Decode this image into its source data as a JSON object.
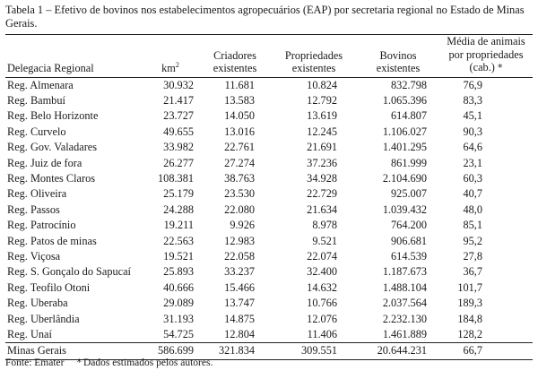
{
  "caption": "Tabela 1 – Efetivo de bovinos nos estabelecimentos agropecuários (EAP) por secretaria regional no Estado de Minas Gerais.",
  "headers": {
    "region": "Delegacia Regional",
    "area": "km",
    "area_sup": "2",
    "breeders": "Criadores existentes",
    "properties": "Propriedades existentes",
    "cattle": "Bovinos existentes",
    "average": "Média de animais por propriedades (cab.)",
    "average_marker": "*"
  },
  "rows": [
    [
      "Reg. Almenara",
      "30.932",
      "11.681",
      "10.824",
      "832.798",
      "76,9"
    ],
    [
      "Reg. Bambuí",
      "21.417",
      "13.583",
      "12.792",
      "1.065.396",
      "83,3"
    ],
    [
      "Reg. Belo Horizonte",
      "23.727",
      "14.050",
      "13.619",
      "614.807",
      "45,1"
    ],
    [
      "Reg. Curvelo",
      "49.655",
      "13.016",
      "12.245",
      "1.106.027",
      "90,3"
    ],
    [
      "Reg. Gov. Valadares",
      "33.982",
      "22.761",
      "21.691",
      "1.401.295",
      "64,6"
    ],
    [
      "Reg. Juiz de fora",
      "26.277",
      "27.274",
      "37.236",
      "861.999",
      "23,1"
    ],
    [
      "Reg. Montes Claros",
      "108.381",
      "38.763",
      "34.928",
      "2.104.690",
      "60,3"
    ],
    [
      "Reg. Oliveira",
      "25.179",
      "23.530",
      "22.729",
      "925.007",
      "40,7"
    ],
    [
      "Reg. Passos",
      "24.288",
      "22.080",
      "21.634",
      "1.039.432",
      "48,0"
    ],
    [
      "Reg. Patrocínio",
      "19.211",
      "9.926",
      "8.978",
      "764.200",
      "85,1"
    ],
    [
      "Reg. Patos de minas",
      "22.563",
      "12.983",
      "9.521",
      "906.681",
      "95,2"
    ],
    [
      "Reg. Viçosa",
      "19.521",
      "22.058",
      "22.074",
      "614.539",
      "27,8"
    ],
    [
      "Reg. S. Gonçalo do Sapucaí",
      "25.893",
      "33.237",
      "32.400",
      "1.187.673",
      "36,7"
    ],
    [
      "Reg. Teofilo Otoni",
      "40.666",
      "15.466",
      "14.632",
      "1.488.104",
      "101,7"
    ],
    [
      "Reg. Uberaba",
      "29.089",
      "13.747",
      "10.766",
      "2.037.564",
      "189,3"
    ],
    [
      "Reg. Uberlândia",
      "31.193",
      "14.875",
      "12.076",
      "2.232.130",
      "184,8"
    ],
    [
      "Reg. Unaí",
      "54.725",
      "12.804",
      "11.406",
      "1.461.889",
      "128,2"
    ]
  ],
  "total": [
    "Minas Gerais",
    "586.699",
    "321.834",
    "309.551",
    "20.644.231",
    "66,7"
  ],
  "footnote": {
    "source": "Fonte: Emater",
    "marker": "*",
    "note": "Dados estimados pelos autores."
  }
}
